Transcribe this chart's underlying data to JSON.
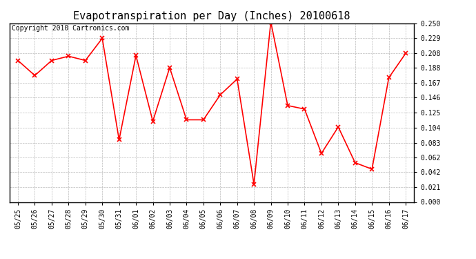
{
  "title": "Evapotranspiration per Day (Inches) 20100618",
  "copyright": "Copyright 2010 Cartronics.com",
  "x_labels": [
    "05/25",
    "05/26",
    "05/27",
    "05/28",
    "05/29",
    "05/30",
    "05/31",
    "06/01",
    "06/02",
    "06/03",
    "06/04",
    "06/05",
    "06/06",
    "06/07",
    "06/08",
    "06/09",
    "06/10",
    "06/11",
    "06/12",
    "06/13",
    "06/14",
    "06/15",
    "06/16",
    "06/17"
  ],
  "y_values": [
    0.198,
    0.177,
    0.198,
    0.204,
    0.198,
    0.229,
    0.087,
    0.205,
    0.113,
    0.188,
    0.115,
    0.115,
    0.15,
    0.172,
    0.025,
    0.252,
    0.135,
    0.13,
    0.068,
    0.105,
    0.055,
    0.046,
    0.174,
    0.208
  ],
  "line_color": "#ff0000",
  "marker": "x",
  "marker_size": 4,
  "marker_linewidth": 1.2,
  "line_width": 1.2,
  "background_color": "#ffffff",
  "grid_color": "#bbbbbb",
  "y_ticks": [
    0.0,
    0.021,
    0.042,
    0.062,
    0.083,
    0.104,
    0.125,
    0.146,
    0.167,
    0.188,
    0.208,
    0.229,
    0.25
  ],
  "ylim": [
    0.0,
    0.25
  ],
  "title_fontsize": 11,
  "tick_fontsize": 7,
  "copyright_fontsize": 7
}
